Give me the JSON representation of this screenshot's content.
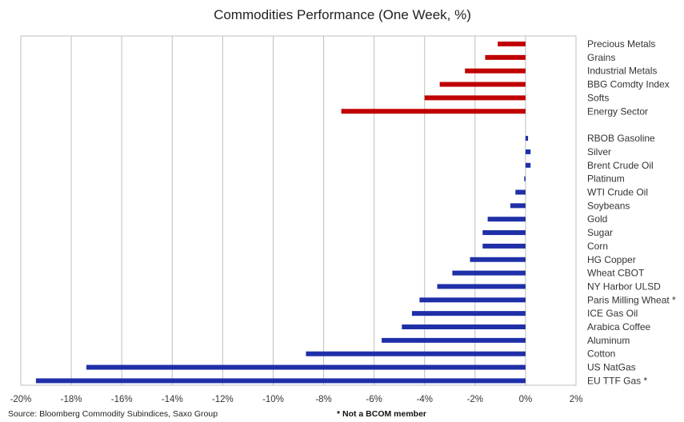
{
  "chart_data": {
    "type": "bar",
    "orientation": "horizontal",
    "title": "Commodities Performance (One Week, %)",
    "xlim": [
      -20,
      2
    ],
    "x_ticks": [
      -20,
      -18,
      -16,
      -14,
      -12,
      -10,
      -8,
      -6,
      -4,
      -2,
      0,
      2
    ],
    "x_tick_labels": [
      "-20%",
      "-18%",
      "-16%",
      "-14%",
      "-12%",
      "-10%",
      "-8%",
      "-6%",
      "-4%",
      "-2%",
      "0%",
      "2%"
    ],
    "grid": true,
    "groups": [
      {
        "color": "#c00000",
        "categories": [
          "Precious Metals",
          "Grains",
          "Industrial Metals",
          "BBG Comdty Index",
          "Softs",
          "Energy Sector"
        ],
        "values": [
          -1.1,
          -1.6,
          -2.4,
          -3.4,
          -4.0,
          -7.3
        ]
      },
      {
        "color": "#1f2fa8",
        "categories": [
          "RBOB Gasoline",
          "Silver",
          "Brent Crude Oil",
          "Platinum",
          "WTI Crude Oil",
          "Soybeans",
          "Gold",
          "Sugar",
          "Corn",
          "HG Copper",
          "Wheat CBOT",
          "NY Harbor ULSD",
          "Paris Milling Wheat *",
          "ICE Gas Oil",
          "Arabica Coffee",
          "Aluminum",
          "Cotton",
          "US NatGas",
          "EU TTF Gas *"
        ],
        "values": [
          0.1,
          0.2,
          0.2,
          -0.05,
          -0.4,
          -0.6,
          -1.5,
          -1.7,
          -1.7,
          -2.2,
          -2.9,
          -3.5,
          -4.2,
          -4.5,
          -4.9,
          -5.7,
          -8.7,
          -17.4,
          -19.4
        ]
      }
    ]
  },
  "footer": {
    "source": "Source: Bloomberg Commodity Subindices, Saxo Group",
    "note": "* Not a BCOM member"
  }
}
